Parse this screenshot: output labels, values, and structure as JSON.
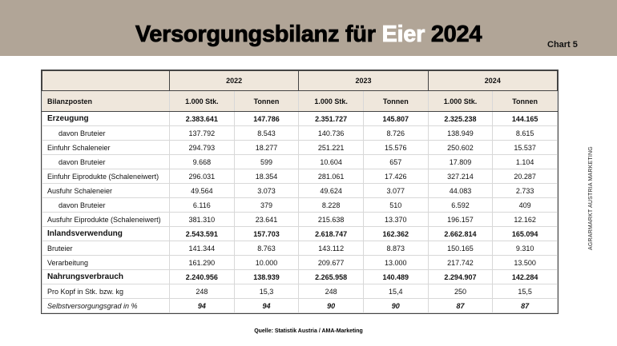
{
  "header": {
    "title_pre": "Versorgungsbilanz für ",
    "title_hl": "Eier",
    "title_post": " 2024",
    "chart_label": "Chart 5"
  },
  "table": {
    "years": [
      "2022",
      "2023",
      "2024"
    ],
    "row_header": "Bilanzposten",
    "units": [
      "1.000 Stk.",
      "Tonnen",
      "1.000 Stk.",
      "Tonnen",
      "1.000 Stk.",
      "Tonnen"
    ],
    "rows": [
      {
        "label": "Erzeugung",
        "style": "bold",
        "values": [
          "2.383.641",
          "147.786",
          "2.351.727",
          "145.807",
          "2.325.238",
          "144.165"
        ]
      },
      {
        "label": "davon Bruteier",
        "style": "indent",
        "values": [
          "137.792",
          "8.543",
          "140.736",
          "8.726",
          "138.949",
          "8.615"
        ]
      },
      {
        "label": "Einfuhr Schaleneier",
        "style": "normal",
        "values": [
          "294.793",
          "18.277",
          "251.221",
          "15.576",
          "250.602",
          "15.537"
        ]
      },
      {
        "label": "davon Bruteier",
        "style": "indent",
        "values": [
          "9.668",
          "599",
          "10.604",
          "657",
          "17.809",
          "1.104"
        ]
      },
      {
        "label": "Einfuhr Eiprodukte (Schaleneiwert)",
        "style": "normal",
        "values": [
          "296.031",
          "18.354",
          "281.061",
          "17.426",
          "327.214",
          "20.287"
        ]
      },
      {
        "label": "Ausfuhr Schaleneier",
        "style": "normal",
        "values": [
          "49.564",
          "3.073",
          "49.624",
          "3.077",
          "44.083",
          "2.733"
        ]
      },
      {
        "label": "davon Bruteier",
        "style": "indent",
        "values": [
          "6.116",
          "379",
          "8.228",
          "510",
          "6.592",
          "409"
        ]
      },
      {
        "label": "Ausfuhr Eiprodukte (Schaleneiwert)",
        "style": "normal",
        "values": [
          "381.310",
          "23.641",
          "215.638",
          "13.370",
          "196.157",
          "12.162"
        ]
      },
      {
        "label": "Inlandsverwendung",
        "style": "bold",
        "values": [
          "2.543.591",
          "157.703",
          "2.618.747",
          "162.362",
          "2.662.814",
          "165.094"
        ]
      },
      {
        "label": "Bruteier",
        "style": "normal",
        "values": [
          "141.344",
          "8.763",
          "143.112",
          "8.873",
          "150.165",
          "9.310"
        ]
      },
      {
        "label": "Verarbeitung",
        "style": "normal",
        "values": [
          "161.290",
          "10.000",
          "209.677",
          "13.000",
          "217.742",
          "13.500"
        ]
      },
      {
        "label": "Nahrungsverbrauch",
        "style": "bold",
        "values": [
          "2.240.956",
          "138.939",
          "2.265.958",
          "140.489",
          "2.294.907",
          "142.284"
        ]
      },
      {
        "label": "Pro Kopf in Stk. bzw. kg",
        "style": "normal",
        "values": [
          "248",
          "15,3",
          "248",
          "15,4",
          "250",
          "15,5"
        ]
      },
      {
        "label": "Selbstversorgungsgrad in %",
        "style": "italic",
        "values": [
          "94",
          "94",
          "90",
          "90",
          "87",
          "87"
        ]
      }
    ]
  },
  "footer": {
    "source": "Quelle: Statistik Austria / AMA-Marketing",
    "side_label": "AGRARMARKT AUSTRIA MARKETING"
  },
  "colors": {
    "band": "#b1a597",
    "header_cell": "#efe7dc",
    "highlight": "#ffffff"
  }
}
